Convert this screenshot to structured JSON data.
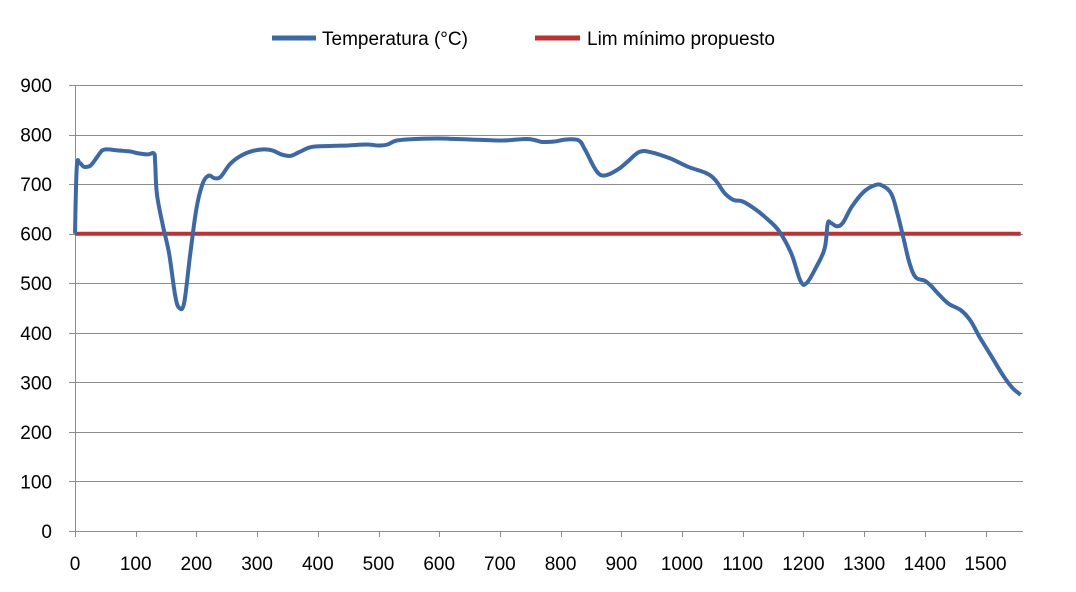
{
  "chart_data": {
    "type": "line",
    "title": "",
    "xlabel": "",
    "ylabel": "",
    "xlim": [
      0,
      1560
    ],
    "ylim": [
      0,
      900
    ],
    "grid": "horizontal",
    "legend_position": "top",
    "x_ticks": [
      0,
      100,
      200,
      300,
      400,
      500,
      600,
      700,
      800,
      900,
      1000,
      1100,
      1200,
      1300,
      1400,
      1500
    ],
    "y_ticks": [
      0,
      100,
      200,
      300,
      400,
      500,
      600,
      700,
      800,
      900
    ],
    "series": [
      {
        "name": "Temperatura (°C)",
        "color": "#3a68a8",
        "points": [
          [
            0,
            600
          ],
          [
            3,
            735
          ],
          [
            8,
            742
          ],
          [
            15,
            735
          ],
          [
            25,
            737
          ],
          [
            35,
            752
          ],
          [
            45,
            768
          ],
          [
            55,
            770
          ],
          [
            70,
            768
          ],
          [
            90,
            766
          ],
          [
            105,
            762
          ],
          [
            120,
            760
          ],
          [
            130,
            762
          ],
          [
            132,
            745
          ],
          [
            135,
            680
          ],
          [
            145,
            615
          ],
          [
            155,
            560
          ],
          [
            165,
            475
          ],
          [
            172,
            450
          ],
          [
            180,
            462
          ],
          [
            190,
            560
          ],
          [
            200,
            650
          ],
          [
            210,
            700
          ],
          [
            220,
            717
          ],
          [
            230,
            712
          ],
          [
            240,
            715
          ],
          [
            255,
            740
          ],
          [
            270,
            755
          ],
          [
            290,
            766
          ],
          [
            310,
            770
          ],
          [
            325,
            768
          ],
          [
            340,
            760
          ],
          [
            355,
            757
          ],
          [
            370,
            765
          ],
          [
            390,
            775
          ],
          [
            420,
            777
          ],
          [
            450,
            778
          ],
          [
            480,
            780
          ],
          [
            500,
            778
          ],
          [
            515,
            780
          ],
          [
            530,
            788
          ],
          [
            560,
            791
          ],
          [
            600,
            792
          ],
          [
            650,
            790
          ],
          [
            700,
            788
          ],
          [
            720,
            789
          ],
          [
            745,
            791
          ],
          [
            760,
            788
          ],
          [
            770,
            785
          ],
          [
            790,
            786
          ],
          [
            810,
            790
          ],
          [
            830,
            788
          ],
          [
            840,
            770
          ],
          [
            860,
            725
          ],
          [
            875,
            718
          ],
          [
            895,
            730
          ],
          [
            910,
            745
          ],
          [
            930,
            765
          ],
          [
            950,
            764
          ],
          [
            980,
            752
          ],
          [
            1010,
            735
          ],
          [
            1040,
            722
          ],
          [
            1055,
            708
          ],
          [
            1070,
            682
          ],
          [
            1085,
            668
          ],
          [
            1100,
            665
          ],
          [
            1120,
            650
          ],
          [
            1140,
            630
          ],
          [
            1160,
            605
          ],
          [
            1180,
            560
          ],
          [
            1195,
            505
          ],
          [
            1205,
            500
          ],
          [
            1220,
            530
          ],
          [
            1235,
            570
          ],
          [
            1240,
            620
          ],
          [
            1245,
            622
          ],
          [
            1255,
            615
          ],
          [
            1265,
            622
          ],
          [
            1280,
            655
          ],
          [
            1300,
            685
          ],
          [
            1318,
            698
          ],
          [
            1330,
            697
          ],
          [
            1345,
            680
          ],
          [
            1355,
            640
          ],
          [
            1365,
            590
          ],
          [
            1375,
            540
          ],
          [
            1385,
            512
          ],
          [
            1400,
            505
          ],
          [
            1410,
            495
          ],
          [
            1425,
            475
          ],
          [
            1440,
            458
          ],
          [
            1460,
            445
          ],
          [
            1475,
            425
          ],
          [
            1490,
            392
          ],
          [
            1510,
            352
          ],
          [
            1530,
            312
          ],
          [
            1545,
            288
          ],
          [
            1558,
            275
          ]
        ]
      },
      {
        "name": "Lim mínimo propuesto",
        "color": "#c0302e",
        "points": [
          [
            0,
            600
          ],
          [
            1558,
            600
          ]
        ]
      }
    ]
  }
}
